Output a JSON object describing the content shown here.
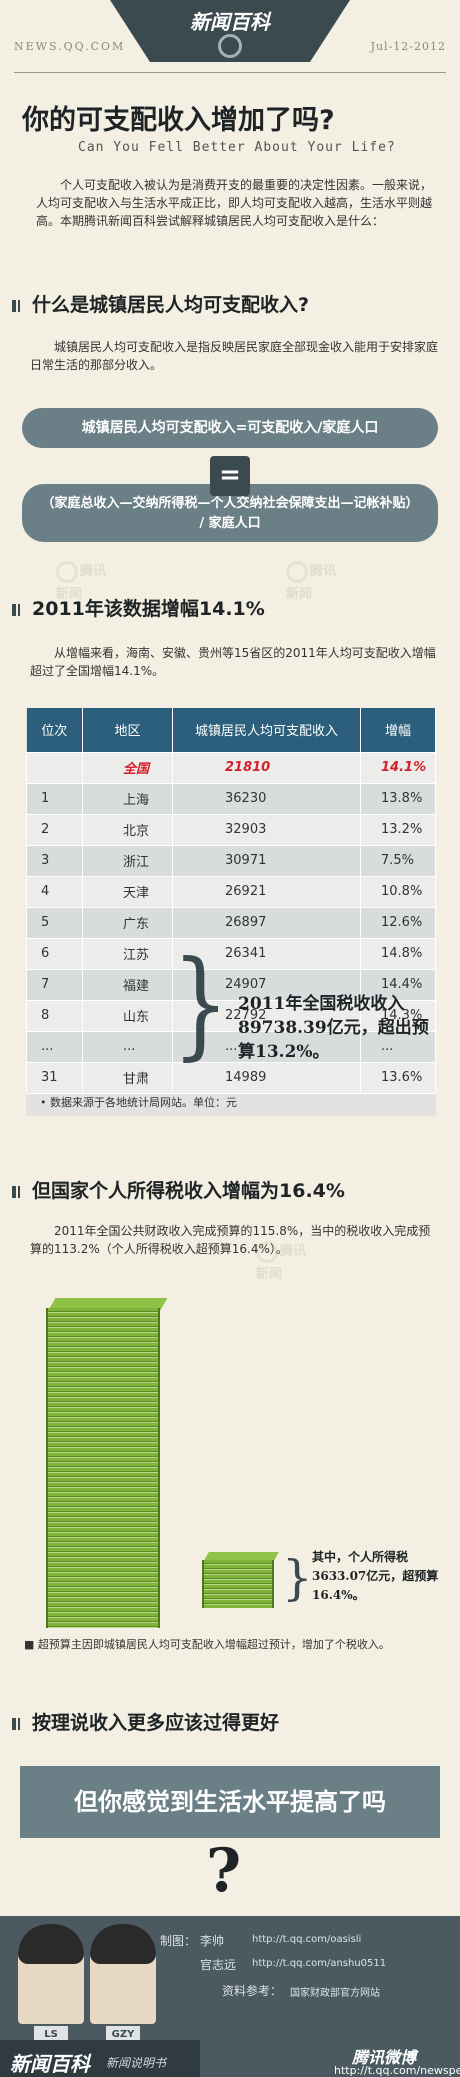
{
  "header": {
    "logo": "新闻百科",
    "site": "NEWS.QQ.COM",
    "date": "Jul-12-2012"
  },
  "title": "你的可支配收入增加了吗?",
  "subtitle": "Can You Fell Better About Your Life?",
  "intro": "个人可支配收入被认为是消费开支的最重要的决定性因素。一般来说，人均可支配收入与生活水平成正比，即人均可支配收入越高，生活水平则越高。本期腾讯新闻百科尝试解释城镇居民人均可支配收入是什么：",
  "watermark": "腾讯新闻",
  "section1": {
    "heading": "什么是城镇居民人均可支配收入?",
    "text": "城镇居民人均可支配收入是指反映居民家庭全部现金收入能用于安排家庭日常生活的那部分收入。",
    "formula1": "城镇居民人均可支配收入=可支配收入/家庭人口",
    "equals": "=",
    "formula2_line1": "（家庭总收入—交纳所得税—个人交纳社会保障支出—记帐补贴）",
    "formula2_line2": "/ 家庭人口"
  },
  "section2": {
    "heading": "2011年该数据增幅14.1%",
    "text": "从增幅来看，海南、安徽、贵州等15省区的2011年人均可支配收入增幅超过了全国增幅14.1%。",
    "table": {
      "headers": [
        "位次",
        "地区",
        "城镇居民人均可支配收入",
        "增幅"
      ],
      "rows": [
        [
          "",
          "全国",
          "21810",
          "14.1%"
        ],
        [
          "1",
          "上海",
          "36230",
          "13.8%"
        ],
        [
          "2",
          "北京",
          "32903",
          "13.2%"
        ],
        [
          "3",
          "浙江",
          "30971",
          "7.5%"
        ],
        [
          "4",
          "天津",
          "26921",
          "10.8%"
        ],
        [
          "5",
          "广东",
          "26897",
          "12.6%"
        ],
        [
          "6",
          "江苏",
          "26341",
          "14.8%"
        ],
        [
          "7",
          "福建",
          "24907",
          "14.4%"
        ],
        [
          "8",
          "山东",
          "22792",
          "14.3%"
        ],
        [
          "...",
          "...",
          "...",
          "..."
        ],
        [
          "31",
          "甘肃",
          "14989",
          "13.6%"
        ]
      ],
      "note": "数据来源于各地统计局网站。单位：元"
    }
  },
  "section3": {
    "heading": "但国家个人所得税收入增幅为16.4%",
    "text": "2011年全国公共财政收入完成预算的115.8%，当中的税收收入完成预算的113.2%（个人所得税收入超预算16.4%）。",
    "big_text": "2011年全国税收收入89738.39亿元，超出预算13.2%。",
    "small_text": "其中，个人所得税3633.07亿元，超预算16.4%。",
    "note": "超预算主因即城镇居民人均可支配收入增幅超过预计，增加了个税收入。",
    "tax_total": 89738.39,
    "tax_personal": 3633.07
  },
  "section4": {
    "heading": "按理说收入更多应该过得更好",
    "banner": "但你感觉到生活水平提高了吗",
    "question": "?"
  },
  "footer": {
    "made_label": "制图：",
    "author1": "李帅",
    "url1": "http://t.qq.com/oasisli",
    "author2": "官志远",
    "url2": "http://t.qq.com/anshu0511",
    "ref_label": "资料参考：",
    "ref": "国家财政部官方网站",
    "tag1": "LS",
    "tag2": "GZY",
    "logo": "新闻百科",
    "logo_sub": "新闻说明书",
    "weibo": "腾讯微博",
    "weibo_url": "http://t.qq.com/newspedia"
  }
}
